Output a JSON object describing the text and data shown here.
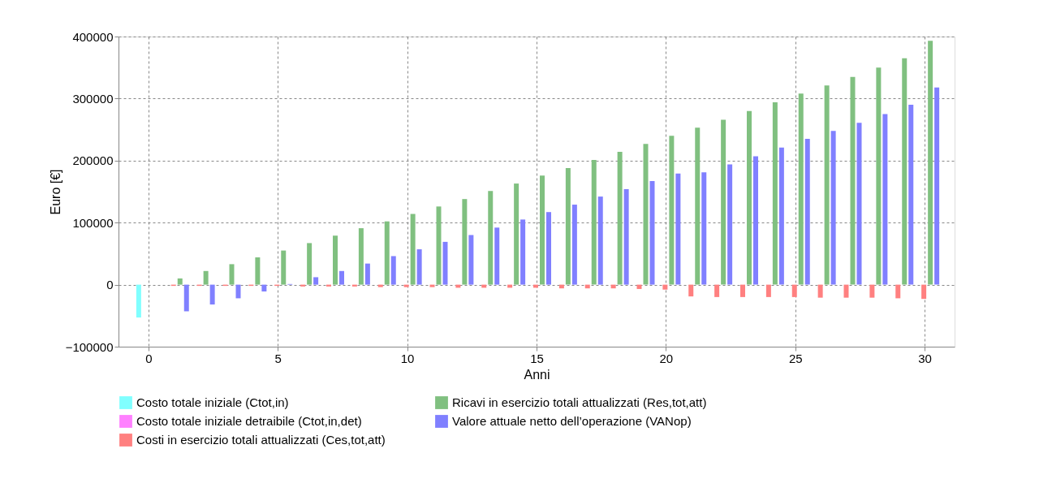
{
  "chart_data": {
    "type": "bar",
    "xlabel": "Anni",
    "ylabel": "Euro [€]",
    "x": [
      0,
      1,
      2,
      3,
      4,
      5,
      6,
      7,
      8,
      9,
      10,
      11,
      12,
      13,
      14,
      15,
      16,
      17,
      18,
      19,
      20,
      21,
      22,
      23,
      24,
      25,
      26,
      27,
      28,
      29,
      30
    ],
    "xlim": [
      -1,
      31
    ],
    "xticks": [
      0,
      5,
      10,
      15,
      20,
      25,
      30
    ],
    "ylim": [
      -100000,
      400000
    ],
    "yticks": [
      -100000,
      0,
      100000,
      200000,
      300000,
      400000
    ],
    "grid": true,
    "legend": "bottom",
    "series": [
      {
        "name": "Costo totale iniziale (Ctot,in)",
        "color": "#80ffff",
        "values": [
          -53000,
          null,
          null,
          null,
          null,
          null,
          null,
          null,
          null,
          null,
          null,
          null,
          null,
          null,
          null,
          null,
          null,
          null,
          null,
          null,
          null,
          null,
          null,
          null,
          null,
          null,
          null,
          null,
          null,
          null,
          null
        ]
      },
      {
        "name": "Costo totale iniziale detraibile (Ctot,in,det)",
        "color": "#ff80ff",
        "values": [
          null,
          null,
          null,
          null,
          null,
          null,
          null,
          null,
          null,
          null,
          null,
          null,
          null,
          null,
          null,
          null,
          null,
          null,
          null,
          null,
          null,
          null,
          null,
          null,
          null,
          null,
          null,
          null,
          null,
          null,
          null
        ]
      },
      {
        "name": "Costi in esercizio totali attualizzati (Ces,tot,att)",
        "color": "#ff8080",
        "values": [
          null,
          -2000,
          -2000,
          -2000,
          -2000,
          -2000,
          -3000,
          -3000,
          -3000,
          -4000,
          -4000,
          -4000,
          -5000,
          -5000,
          -5000,
          -5000,
          -6000,
          -6000,
          -6000,
          -7000,
          -8000,
          -19000,
          -20000,
          -20000,
          -20000,
          -20000,
          -21000,
          -21000,
          -21000,
          -22000,
          -23000
        ]
      },
      {
        "name": "Ricavi in esercizio totali attualizzati (Res,tot,att)",
        "color": "#80c080",
        "values": [
          null,
          10000,
          22000,
          33000,
          44000,
          55000,
          67000,
          79000,
          91000,
          102000,
          114000,
          126000,
          138000,
          151000,
          163000,
          176000,
          188000,
          201000,
          214000,
          227000,
          240000,
          253000,
          266000,
          280000,
          294000,
          308000,
          321000,
          335000,
          350000,
          365000,
          393000
        ]
      },
      {
        "name": "Valore attuale netto dell’operazione (VANop)",
        "color": "#8080ff",
        "values": [
          null,
          -43000,
          -32000,
          -22000,
          -11000,
          1000,
          12000,
          22000,
          34000,
          46000,
          57000,
          69000,
          80000,
          92000,
          105000,
          117000,
          129000,
          142000,
          154000,
          167000,
          179000,
          181000,
          194000,
          207000,
          221000,
          235000,
          248000,
          261000,
          275000,
          290000,
          318000
        ]
      }
    ]
  }
}
